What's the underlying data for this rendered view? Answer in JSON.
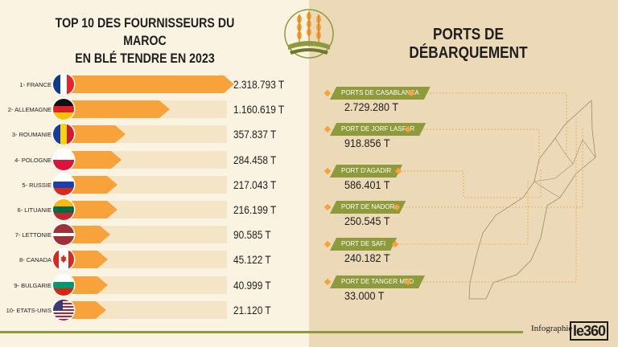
{
  "left_title": [
    "TOP 10 DES FOURNISSEURS DU MAROC",
    "EN BLÉ TENDRE EN 2023"
  ],
  "right_title": "PORTS DE DÉBARQUEMENT",
  "footer": {
    "label": "Infographie",
    "brand": "le360"
  },
  "colors": {
    "bar": "#f7a23a",
    "track": "#f4e5c7",
    "left_bg": "#fbf3e2",
    "right_bg": "#ecd9b7",
    "tag": "#8e9b3d"
  },
  "chart_data": [
    {
      "type": "bar",
      "title": "TOP 10 DES FOURNISSEURS DU MAROC EN BLÉ TENDRE EN 2023",
      "categories": [
        "1- FRANCE",
        "2- ALLEMAGNE",
        "3- ROUMANIE",
        "4- POLOGNE",
        "5- RUSSIE",
        "6- LITUANIE",
        "7- LETTONIE",
        "8- CANADA",
        "9- BULGARIE",
        "10- ETATS-UNIS"
      ],
      "values": [
        2318793,
        1160619,
        357837,
        284458,
        217043,
        216199,
        90585,
        45122,
        40999,
        21120
      ],
      "value_labels": [
        "2.318.793 T",
        "1.160.619 T",
        "357.837 T",
        "284.458 T",
        "217.043 T",
        "216.199 T",
        "90.585 T",
        "45.122 T",
        "40.999 T",
        "21.120 T"
      ],
      "flags": [
        "france-flag",
        "germany-flag",
        "romania-flag",
        "poland-flag",
        "russia-flag",
        "lithuania-flag",
        "latvia-flag",
        "canada-flag",
        "bulgaria-flag",
        "usa-flag"
      ],
      "orientation": "horizontal"
    },
    {
      "type": "table",
      "title": "PORTS DE DÉBARQUEMENT",
      "ports": [
        {
          "name": "PORTS DE CASABLANCA",
          "value": "2.729.280 T"
        },
        {
          "name": "PORT DE JORF LASFAR",
          "value": "918.856 T"
        },
        {
          "name": "PORT D'AGADIR",
          "value": "586.401 T"
        },
        {
          "name": "PORT DE NADOR",
          "value": "250.545  T"
        },
        {
          "name": "PORT DE SAFI",
          "value": "240.182 T"
        },
        {
          "name": "PORT DE TANGER MED",
          "value": "33.000 T"
        }
      ]
    }
  ]
}
